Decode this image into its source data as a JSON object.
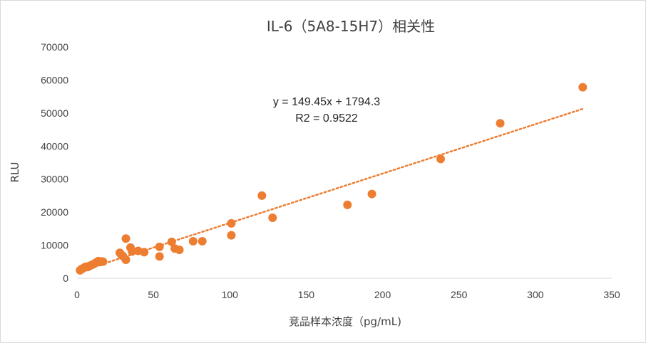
{
  "chart_data": {
    "type": "scatter",
    "title": "IL-6（5A8-15H7）相关性",
    "xlabel": "竞品样本浓度（pg/mL)",
    "ylabel": "RLU",
    "xlim": [
      0,
      350
    ],
    "ylim": [
      0,
      70000
    ],
    "x_ticks": [
      "0",
      "50",
      "100",
      "150",
      "200",
      "250",
      "300",
      "350"
    ],
    "y_ticks": [
      "0",
      "10000",
      "20000",
      "30000",
      "40000",
      "50000",
      "60000",
      "70000"
    ],
    "grid": false,
    "marker_color": "#ED7D31",
    "points": [
      [
        2,
        2400
      ],
      [
        3,
        2800
      ],
      [
        4,
        3000
      ],
      [
        5,
        3300
      ],
      [
        6,
        3500
      ],
      [
        7,
        3400
      ],
      [
        8,
        3700
      ],
      [
        9,
        3900
      ],
      [
        10,
        4100
      ],
      [
        11,
        4300
      ],
      [
        12,
        4600
      ],
      [
        13,
        4900
      ],
      [
        14,
        5200
      ],
      [
        15,
        4900
      ],
      [
        16,
        5100
      ],
      [
        17,
        5000
      ],
      [
        28,
        7700
      ],
      [
        29,
        7100
      ],
      [
        30,
        6700
      ],
      [
        32,
        5600
      ],
      [
        32,
        12000
      ],
      [
        35,
        9300
      ],
      [
        36,
        8100
      ],
      [
        40,
        8300
      ],
      [
        44,
        7900
      ],
      [
        54,
        9500
      ],
      [
        54,
        6600
      ],
      [
        62,
        11000
      ],
      [
        64,
        9000
      ],
      [
        67,
        8600
      ],
      [
        76,
        11200
      ],
      [
        82,
        11200
      ],
      [
        101,
        16600
      ],
      [
        101,
        13000
      ],
      [
        121,
        25000
      ],
      [
        128,
        18300
      ],
      [
        177,
        22200
      ],
      [
        193,
        25500
      ],
      [
        238,
        36100
      ],
      [
        277,
        46900
      ],
      [
        331,
        57800
      ]
    ],
    "trendline": {
      "type": "linear",
      "slope": 149.45,
      "intercept": 1794.3,
      "style": "dotted",
      "equation_label": "y = 149.45x + 1794.3",
      "r2_label": "R2 = 0.9522"
    }
  }
}
